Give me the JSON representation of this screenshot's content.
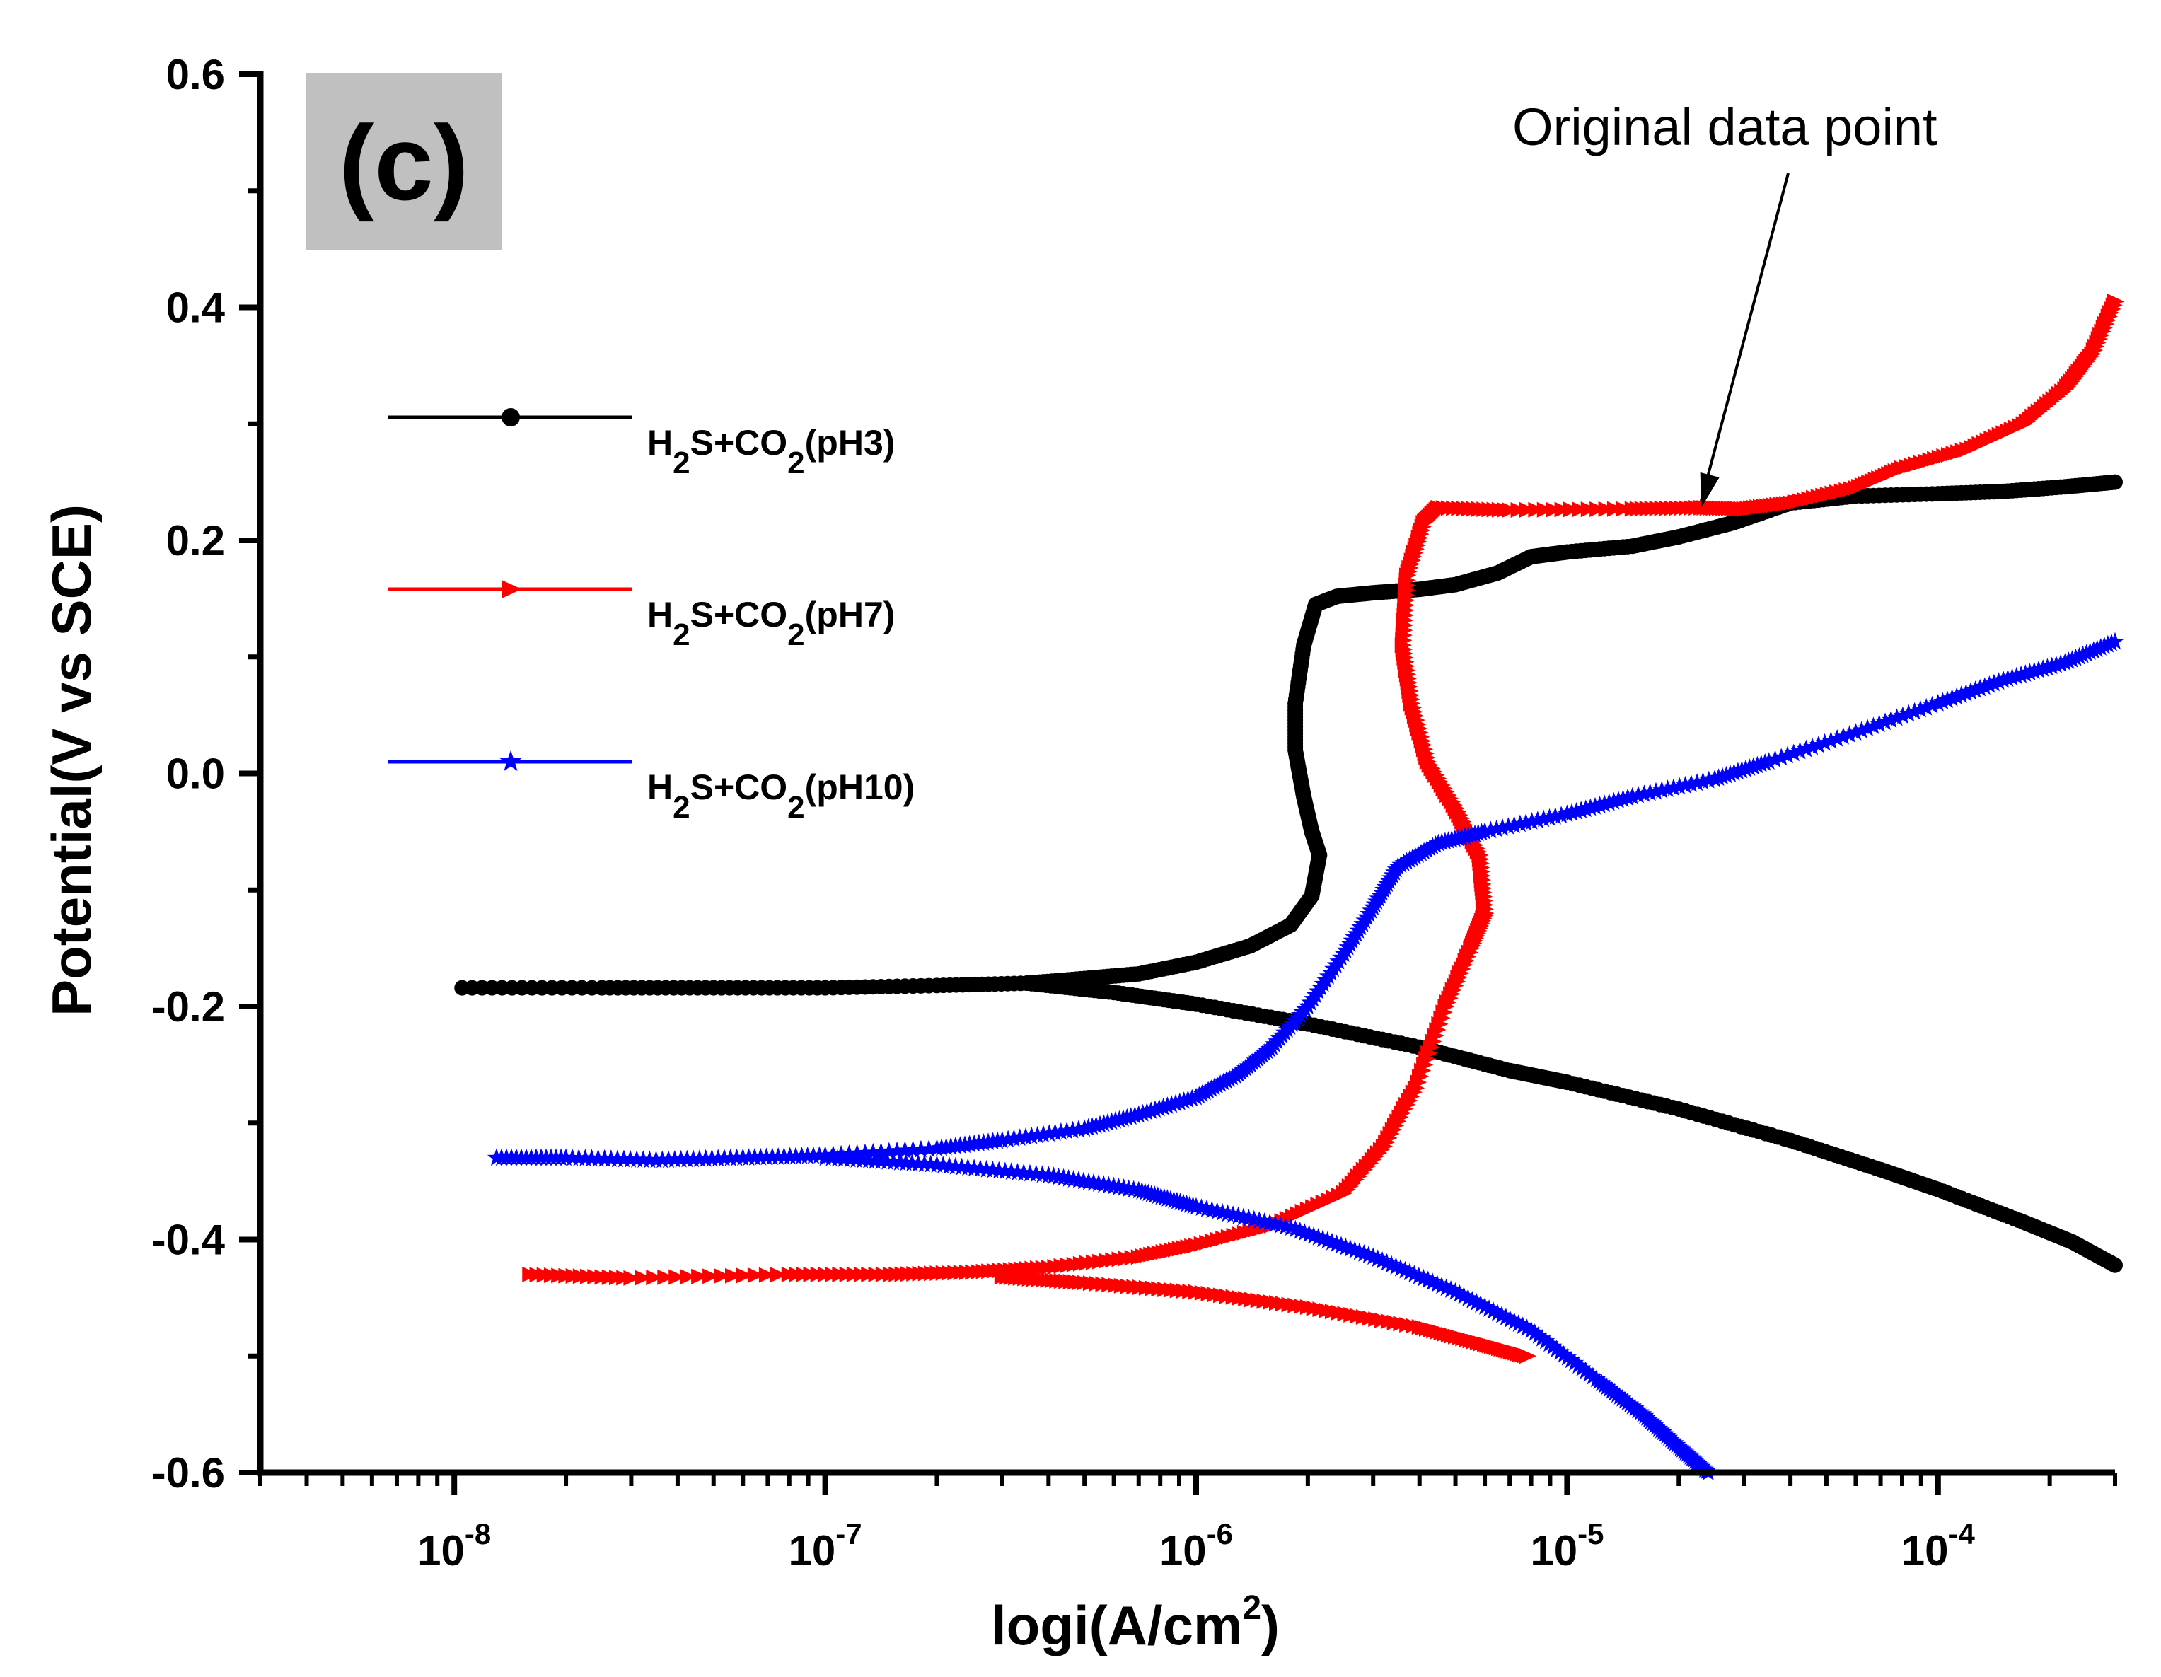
{
  "chart_data": {
    "type": "line",
    "title": "",
    "panel_label": "(c)",
    "xlabel": "logi(A/cm",
    "xlabel_sup": "2",
    "xlabel_close": ")",
    "ylabel": "Potential(V vs SCE)",
    "xscale": "log",
    "xlim": [
      3e-09,
      0.0003
    ],
    "ylim": [
      -0.6,
      0.6
    ],
    "y_ticks": [
      -0.6,
      -0.4,
      -0.2,
      0.0,
      0.2,
      0.4,
      0.6
    ],
    "y_tick_labels": [
      "-0.6",
      "-0.4",
      "-0.2",
      "0.0",
      "0.2",
      "0.4",
      "0.6"
    ],
    "x_ticks": [
      1e-08,
      1e-07,
      1e-06,
      1e-05,
      0.0001
    ],
    "x_tick_base": "10",
    "x_tick_exponents": [
      "-8",
      "-7",
      "-6",
      "-5",
      "-4"
    ],
    "grid": false,
    "legend_position": "upper-left",
    "annotation": {
      "text": "Original data point",
      "target": {
        "x": 2.3e-05,
        "y": 0.228
      }
    },
    "series": [
      {
        "name": "H2S+CO2(pH3)",
        "legend": {
          "a": "H",
          "sub1": "2",
          "b": "S+CO",
          "sub2": "2",
          "c": "(pH3)"
        },
        "color": "#000000",
        "marker": "circle",
        "points": [
          [
            1.05e-08,
            -0.184
          ],
          [
            2.5e-08,
            -0.184
          ],
          [
            5e-08,
            -0.184
          ],
          [
            1e-07,
            -0.184
          ],
          [
            2e-07,
            -0.182
          ],
          [
            3.5e-07,
            -0.18
          ],
          [
            5e-07,
            -0.176
          ],
          [
            7e-07,
            -0.172
          ],
          [
            1e-06,
            -0.162
          ],
          [
            1.4e-06,
            -0.148
          ],
          [
            1.8e-06,
            -0.13
          ],
          [
            2.05e-06,
            -0.105
          ],
          [
            2.15e-06,
            -0.07
          ],
          [
            2.05e-06,
            -0.05
          ],
          [
            1.95e-06,
            -0.02
          ],
          [
            1.85e-06,
            0.02
          ],
          [
            1.85e-06,
            0.06
          ],
          [
            1.95e-06,
            0.11
          ],
          [
            2.1e-06,
            0.145
          ],
          [
            2.4e-06,
            0.152
          ],
          [
            3e-06,
            0.155
          ],
          [
            4e-06,
            0.158
          ],
          [
            5e-06,
            0.162
          ],
          [
            6.5e-06,
            0.172
          ],
          [
            8e-06,
            0.186
          ],
          [
            1e-05,
            0.19
          ],
          [
            1.5e-05,
            0.195
          ],
          [
            2e-05,
            0.203
          ],
          [
            2.8e-05,
            0.215
          ],
          [
            4e-05,
            0.232
          ],
          [
            6e-05,
            0.238
          ],
          [
            0.0001,
            0.24
          ],
          [
            0.00015,
            0.242
          ],
          [
            0.00022,
            0.246
          ],
          [
            0.0003,
            0.25
          ]
        ],
        "cathodic": [
          [
            3.5e-07,
            -0.18
          ],
          [
            6e-07,
            -0.188
          ],
          [
            1e-06,
            -0.198
          ],
          [
            2e-06,
            -0.215
          ],
          [
            4e-06,
            -0.235
          ],
          [
            7e-06,
            -0.255
          ],
          [
            1e-05,
            -0.265
          ],
          [
            2e-05,
            -0.288
          ],
          [
            4e-05,
            -0.315
          ],
          [
            7e-05,
            -0.34
          ],
          [
            0.0001,
            -0.357
          ],
          [
            0.00017,
            -0.385
          ],
          [
            0.00023,
            -0.402
          ],
          [
            0.0003,
            -0.422
          ]
        ]
      },
      {
        "name": "H2S+CO2(pH7)",
        "legend": {
          "a": "H",
          "sub1": "2",
          "b": "S+CO",
          "sub2": "2",
          "c": "(pH7)"
        },
        "color": "#ff0000",
        "marker": "triangle-right",
        "points": [
          [
            1.6e-08,
            -0.43
          ],
          [
            3e-08,
            -0.433
          ],
          [
            8e-08,
            -0.43
          ],
          [
            1.5e-07,
            -0.43
          ],
          [
            2.5e-07,
            -0.428
          ],
          [
            4e-07,
            -0.424
          ],
          [
            7e-07,
            -0.415
          ],
          [
            1e-06,
            -0.405
          ],
          [
            1.6e-06,
            -0.388
          ],
          [
            2.5e-06,
            -0.36
          ],
          [
            3.2e-06,
            -0.32
          ],
          [
            3.9e-06,
            -0.27
          ],
          [
            4.7e-06,
            -0.2
          ],
          [
            5.5e-06,
            -0.15
          ],
          [
            6e-06,
            -0.12
          ],
          [
            5.8e-06,
            -0.07
          ],
          [
            5e-06,
            -0.03
          ],
          [
            4.2e-06,
            0.01
          ],
          [
            3.8e-06,
            0.06
          ],
          [
            3.6e-06,
            0.11
          ],
          [
            3.7e-06,
            0.17
          ],
          [
            4.1e-06,
            0.215
          ],
          [
            4.5e-06,
            0.228
          ],
          [
            7e-06,
            0.226
          ],
          [
            1.5e-05,
            0.227
          ],
          [
            2.3e-05,
            0.228
          ],
          [
            3e-05,
            0.227
          ],
          [
            4e-05,
            0.232
          ],
          [
            6e-05,
            0.245
          ],
          [
            8e-05,
            0.262
          ],
          [
            0.00012,
            0.278
          ],
          [
            0.00017,
            0.3
          ],
          [
            0.00022,
            0.33
          ],
          [
            0.00026,
            0.36
          ],
          [
            0.0003,
            0.405
          ]
        ],
        "cathodic": [
          [
            3e-07,
            -0.432
          ],
          [
            5e-07,
            -0.437
          ],
          [
            1e-06,
            -0.445
          ],
          [
            2e-06,
            -0.458
          ],
          [
            4e-06,
            -0.475
          ],
          [
            6e-06,
            -0.49
          ],
          [
            7.8e-06,
            -0.5
          ]
        ]
      },
      {
        "name": "H2S+CO2(pH10)",
        "legend": {
          "a": "H",
          "sub1": "2",
          "b": "S+CO",
          "sub2": "2",
          "c": "(pH10)"
        },
        "color": "#0000ff",
        "marker": "star",
        "points": [
          [
            1.3e-08,
            -0.33
          ],
          [
            2e-08,
            -0.33
          ],
          [
            3.5e-08,
            -0.332
          ],
          [
            6e-08,
            -0.33
          ],
          [
            1e-07,
            -0.328
          ],
          [
            2e-07,
            -0.322
          ],
          [
            3e-07,
            -0.315
          ],
          [
            5e-07,
            -0.305
          ],
          [
            7e-07,
            -0.293
          ],
          [
            1e-06,
            -0.278
          ],
          [
            1.3e-06,
            -0.258
          ],
          [
            1.6e-06,
            -0.235
          ],
          [
            2e-06,
            -0.2
          ],
          [
            2.5e-06,
            -0.155
          ],
          [
            3e-06,
            -0.115
          ],
          [
            3.5e-06,
            -0.08
          ],
          [
            4.5e-06,
            -0.06
          ],
          [
            6e-06,
            -0.05
          ],
          [
            1e-05,
            -0.035
          ],
          [
            1.5e-05,
            -0.02
          ],
          [
            2.5e-05,
            -0.005
          ],
          [
            3.5e-05,
            0.01
          ],
          [
            6e-05,
            0.035
          ],
          [
            0.0001,
            0.06
          ],
          [
            0.00015,
            0.08
          ],
          [
            0.00022,
            0.095
          ],
          [
            0.0003,
            0.113
          ]
        ],
        "cathodic": [
          [
            1e-07,
            -0.33
          ],
          [
            2e-07,
            -0.336
          ],
          [
            4e-07,
            -0.345
          ],
          [
            7e-07,
            -0.358
          ],
          [
            1e-06,
            -0.372
          ],
          [
            1.8e-06,
            -0.39
          ],
          [
            3e-06,
            -0.415
          ],
          [
            5e-06,
            -0.445
          ],
          [
            8e-06,
            -0.478
          ],
          [
            1.2e-05,
            -0.52
          ],
          [
            1.6e-05,
            -0.55
          ],
          [
            2e-05,
            -0.578
          ],
          [
            2.4e-05,
            -0.6
          ]
        ]
      }
    ]
  }
}
